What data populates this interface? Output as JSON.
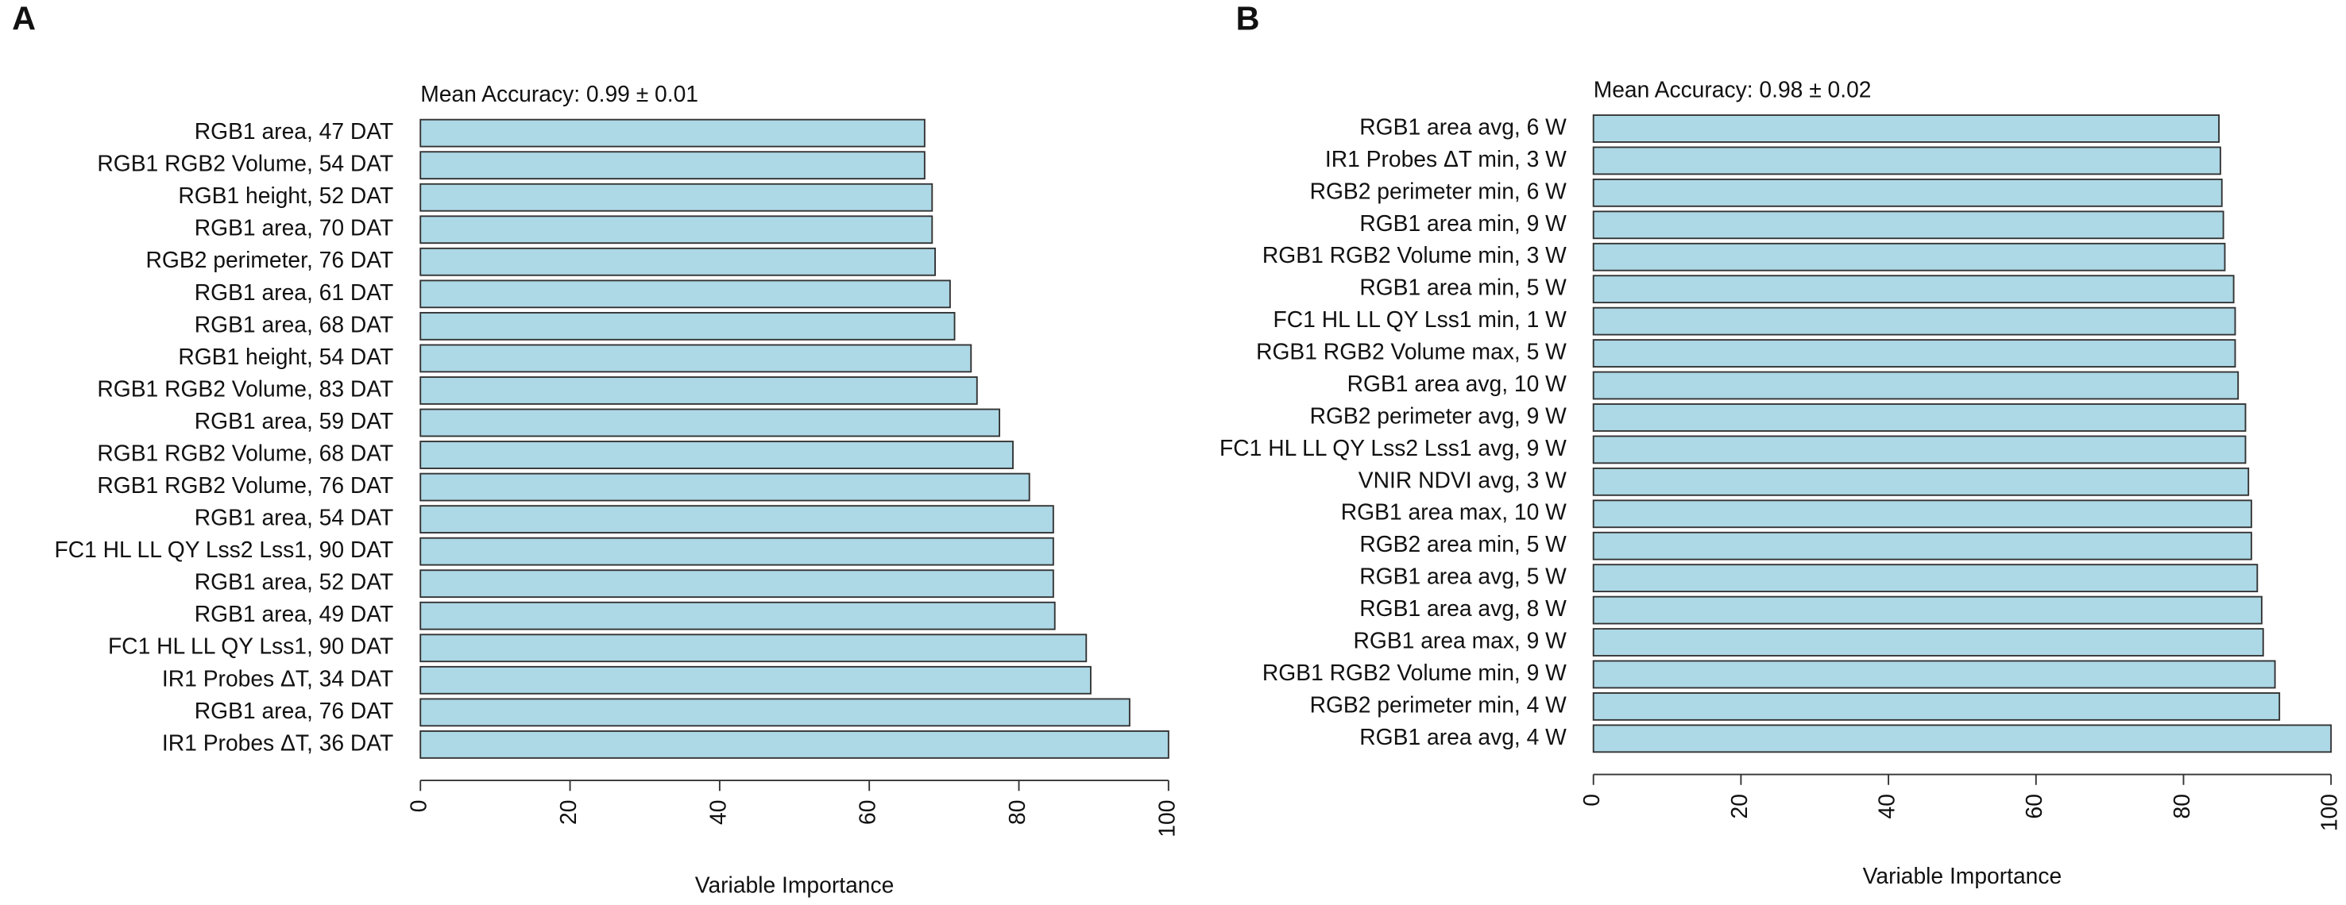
{
  "chart_data": [
    {
      "type": "bar",
      "orientation": "horizontal",
      "panel_label": "A",
      "subtitle": "Mean Accuracy: 0.99 ± 0.01",
      "x_label": "Variable Importance",
      "categories": [
        "RGB1 area, 47 DAT",
        "RGB1 RGB2 Volume, 54 DAT",
        "RGB1 height, 52 DAT",
        "RGB1 area, 70 DAT",
        "RGB2 perimeter, 76 DAT",
        "RGB1 area, 61 DAT",
        "RGB1 area, 68 DAT",
        "RGB1 height, 54 DAT",
        "RGB1 RGB2 Volume, 83 DAT",
        "RGB1 area, 59 DAT",
        "RGB1 RGB2 Volume, 68 DAT",
        "RGB1 RGB2 Volume, 76 DAT",
        "RGB1 area, 54 DAT",
        "FC1 HL LL QY Lss2 Lss1, 90 DAT",
        "RGB1 area, 52 DAT",
        "RGB1 area, 49 DAT",
        "FC1 HL LL QY Lss1, 90 DAT",
        "IR1 Probes ΔT, 34 DAT",
        "RGB1 area, 76 DAT",
        "IR1 Probes ΔT, 36 DAT"
      ],
      "values": [
        67.4,
        67.4,
        68.4,
        68.4,
        68.8,
        70.8,
        71.4,
        73.6,
        74.4,
        77.4,
        79.2,
        81.4,
        84.6,
        84.6,
        84.6,
        84.8,
        89,
        89.6,
        94.8,
        100
      ],
      "color": "#add8e6",
      "xlim": [
        0,
        100
      ],
      "xticks": [
        0,
        20,
        40,
        60,
        80,
        100
      ]
    },
    {
      "type": "bar",
      "orientation": "horizontal",
      "panel_label": "B",
      "subtitle": "Mean Accuracy: 0.98 ± 0.02",
      "x_label": "Variable Importance",
      "categories": [
        "RGB1 area avg, 6 W",
        "IR1 Probes ΔT min, 3 W",
        "RGB2 perimeter min, 6 W",
        "RGB1 area min, 9 W",
        "RGB1 RGB2 Volume min, 3 W",
        "RGB1 area min, 5 W",
        "FC1 HL LL QY Lss1 min, 1 W",
        "RGB1 RGB2 Volume max, 5 W",
        "RGB1 area avg, 10 W",
        "RGB2 perimeter avg, 9 W",
        "FC1 HL LL QY Lss2 Lss1 avg, 9 W",
        "VNIR NDVI avg, 3 W",
        "RGB1 area max, 10 W",
        "RGB2 area min, 5 W",
        "RGB1 area avg, 5 W",
        "RGB1 area avg, 8 W",
        "RGB1 area max, 9 W",
        "RGB1 RGB2 Volume min, 9 W",
        "RGB2 perimeter min, 4 W",
        "RGB1 area avg, 4 W"
      ],
      "values": [
        84.8,
        85,
        85.2,
        85.4,
        85.6,
        86.8,
        87,
        87,
        87.4,
        88.4,
        88.4,
        88.8,
        89.2,
        89.2,
        90,
        90.6,
        90.8,
        92.4,
        93,
        100
      ],
      "color": "#add8e6",
      "xlim": [
        0,
        100
      ],
      "xticks": [
        0,
        20,
        40,
        60,
        80,
        100
      ]
    }
  ]
}
